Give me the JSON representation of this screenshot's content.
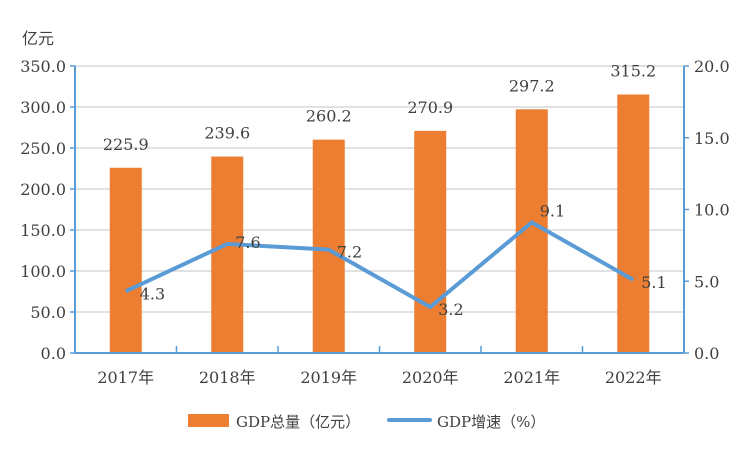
{
  "chart_data": {
    "type": "bar+line",
    "categories": [
      "2017年",
      "2018年",
      "2019年",
      "2020年",
      "2021年",
      "2022年"
    ],
    "series": [
      {
        "name": "GDP总量（亿元）",
        "type": "bar",
        "axis": "left",
        "color": "#ED7D31",
        "values": [
          225.9,
          239.6,
          260.2,
          270.9,
          297.2,
          315.2
        ],
        "labels": [
          "225.9",
          "239.6",
          "260.2",
          "270.9",
          "297.2",
          "315.2"
        ]
      },
      {
        "name": "GDP增速（%）",
        "type": "line",
        "axis": "right",
        "color": "#5B9BD5",
        "values": [
          4.3,
          7.6,
          7.2,
          3.2,
          9.1,
          5.1
        ],
        "labels": [
          "4.3",
          "7.6",
          "7.2",
          "3.2",
          "9.1",
          "5.1"
        ]
      }
    ],
    "y_left": {
      "unit_label": "亿元",
      "range": [
        0,
        350
      ],
      "ticks": [
        "0.0",
        "50.0",
        "100.0",
        "150.0",
        "200.0",
        "250.0",
        "300.0",
        "350.0"
      ]
    },
    "y_right": {
      "range": [
        0,
        20
      ],
      "ticks": [
        "0.0",
        "5.0",
        "10.0",
        "15.0",
        "20.0"
      ]
    },
    "grid": true,
    "legend_position": "bottom",
    "axis_color": "#5B9BD5",
    "grid_color": "#D9D9D9"
  }
}
